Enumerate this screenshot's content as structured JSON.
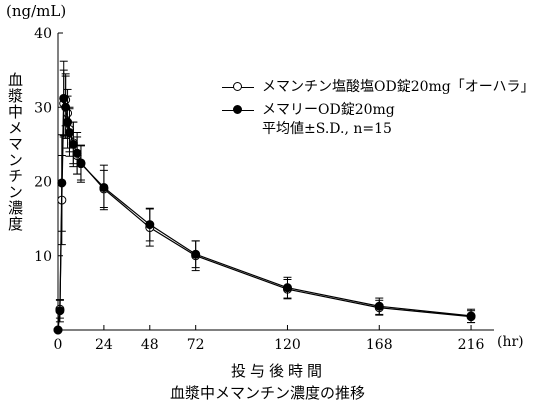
{
  "chart_data": {
    "type": "line",
    "title": "血漿中メマンチン濃度の推移",
    "xlabel": "投与後時間",
    "x_unit": "(hr)",
    "ylabel": "血漿中メマンチン濃度",
    "y_unit": "(ng/mL)",
    "xlim": [
      0,
      228
    ],
    "ylim": [
      0,
      40
    ],
    "x_ticks": [
      0,
      24,
      48,
      72,
      120,
      168,
      216
    ],
    "y_ticks": [
      10,
      20,
      30,
      40
    ],
    "grid": false,
    "legend_position": "top-right",
    "legend_note": "平均値±S.D., n=15",
    "series": [
      {
        "name": "メマンチン塩酸塩OD錠20mg「オーハラ」",
        "marker": "open-circle",
        "points": [
          {
            "x": 0,
            "y": 0,
            "sd": 0
          },
          {
            "x": 1,
            "y": 2.8,
            "sd": 1.2
          },
          {
            "x": 2,
            "y": 17.5,
            "sd": 6
          },
          {
            "x": 3,
            "y": 30.5,
            "sd": 4.5
          },
          {
            "x": 4,
            "y": 31.0,
            "sd": 3.5
          },
          {
            "x": 5,
            "y": 29.2,
            "sd": 3.2
          },
          {
            "x": 6,
            "y": 27.0,
            "sd": 3.0
          },
          {
            "x": 8,
            "y": 25.2,
            "sd": 2.8
          },
          {
            "x": 10,
            "y": 23.5,
            "sd": 2.5
          },
          {
            "x": 12,
            "y": 22.5,
            "sd": 2.3
          },
          {
            "x": 24,
            "y": 19.0,
            "sd": 2.5
          },
          {
            "x": 48,
            "y": 13.8,
            "sd": 2.5
          },
          {
            "x": 72,
            "y": 10.0,
            "sd": 2.0
          },
          {
            "x": 120,
            "y": 5.5,
            "sd": 1.3
          },
          {
            "x": 168,
            "y": 3.0,
            "sd": 1.0
          },
          {
            "x": 216,
            "y": 1.8,
            "sd": 0.8
          }
        ]
      },
      {
        "name": "メマリーOD錠20mg",
        "marker": "filled-circle",
        "points": [
          {
            "x": 0,
            "y": 0,
            "sd": 0
          },
          {
            "x": 1,
            "y": 2.6,
            "sd": 1.5
          },
          {
            "x": 2,
            "y": 19.8,
            "sd": 6.5
          },
          {
            "x": 3,
            "y": 31.2,
            "sd": 5
          },
          {
            "x": 4,
            "y": 30.0,
            "sd": 4.2
          },
          {
            "x": 5,
            "y": 28.0,
            "sd": 3.5
          },
          {
            "x": 6,
            "y": 26.6,
            "sd": 3.2
          },
          {
            "x": 8,
            "y": 25.0,
            "sd": 3.0
          },
          {
            "x": 10,
            "y": 23.8,
            "sd": 2.8
          },
          {
            "x": 12,
            "y": 22.4,
            "sd": 2.5
          },
          {
            "x": 24,
            "y": 19.2,
            "sd": 3.0
          },
          {
            "x": 48,
            "y": 14.2,
            "sd": 2.2
          },
          {
            "x": 72,
            "y": 10.2,
            "sd": 1.8
          },
          {
            "x": 120,
            "y": 5.7,
            "sd": 1.4
          },
          {
            "x": 168,
            "y": 3.2,
            "sd": 1.1
          },
          {
            "x": 216,
            "y": 1.9,
            "sd": 0.9
          }
        ]
      }
    ]
  }
}
